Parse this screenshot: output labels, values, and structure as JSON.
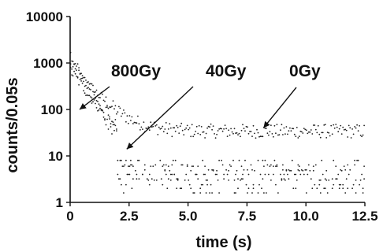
{
  "chart_data": {
    "type": "scatter",
    "xlabel": "time (s)",
    "ylabel": "counts/0.05s",
    "xlim": [
      0,
      12.5
    ],
    "ylim": [
      1,
      10000
    ],
    "y_scale": "log",
    "grid": false,
    "x_ticks": [
      0,
      2.5,
      5.0,
      7.5,
      10.0,
      12.5
    ],
    "x_tick_labels": [
      "0",
      "2.5",
      "5.0",
      "7.5",
      "10.0",
      "12.5"
    ],
    "y_ticks": [
      1,
      10,
      100,
      1000,
      10000
    ],
    "y_tick_labels": [
      "1",
      "10",
      "100",
      "1000",
      "10000"
    ],
    "series": [
      {
        "name": "0Gy",
        "start": 900,
        "tau": 0.75,
        "plateau": 34,
        "plateau_spread": 0.15
      },
      {
        "name": "40Gy",
        "start": 700,
        "tau": 0.65,
        "plateau": 5,
        "plateau_spread": 0.3
      },
      {
        "name": "800Gy",
        "start": 1400,
        "tau": 0.5,
        "plateau": 3,
        "plateau_spread": 0.3
      }
    ],
    "annotations": [
      {
        "text": "800Gy",
        "points_to": {
          "x": 0.4,
          "y": 100
        }
      },
      {
        "text": "40Gy",
        "points_to": {
          "x": 2.4,
          "y": 14
        }
      },
      {
        "text": "0Gy",
        "points_to": {
          "x": 8.2,
          "y": 40
        }
      }
    ]
  }
}
